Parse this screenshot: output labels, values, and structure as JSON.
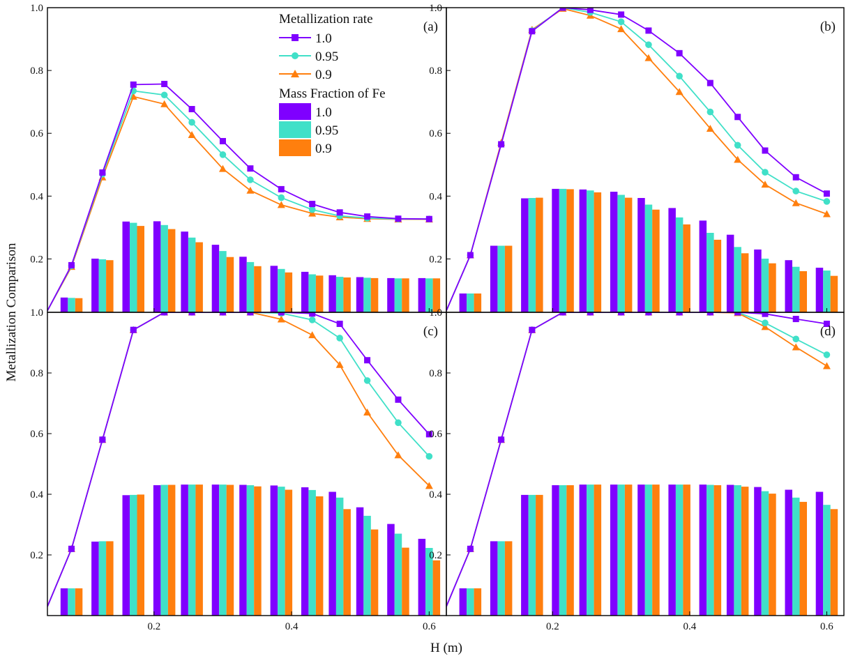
{
  "figure": {
    "xlabel": "H (m)",
    "ylabel": "Metallization Comparison"
  },
  "colors": {
    "rate_1_0": "#7f00ff",
    "rate_0_95": "#40e0c8",
    "rate_0_9": "#ff7f0e"
  },
  "legend": {
    "line_title": "Metallization rate",
    "line_items": [
      "1.0",
      "0.95",
      "0.9"
    ],
    "bar_title": "Mass Fraction of Fe",
    "bar_items": [
      "1.0",
      "0.95",
      "0.9"
    ]
  },
  "chart_data": [
    {
      "panel": "(a)",
      "type": "bar+line",
      "x": [
        0.08,
        0.125,
        0.17,
        0.215,
        0.255,
        0.3,
        0.34,
        0.385,
        0.43,
        0.47,
        0.51,
        0.555,
        0.6
      ],
      "xlim": [
        0.045,
        0.625
      ],
      "ylim": [
        0.03,
        1.0
      ],
      "line_start": [
        0.045,
        0.035
      ],
      "x_ticks": [
        0.2,
        0.4,
        0.6
      ],
      "y_ticks": [
        0.2,
        0.4,
        0.6,
        0.8,
        1.0
      ],
      "series": [
        {
          "name": "1.0",
          "line": [
            0.18,
            0.475,
            0.755,
            0.757,
            0.677,
            0.575,
            0.488,
            0.422,
            0.375,
            0.348,
            0.335,
            0.328,
            0.327
          ],
          "bars": [
            0.077,
            0.201,
            0.319,
            0.32,
            0.287,
            0.245,
            0.207,
            0.178,
            0.159,
            0.148,
            0.142,
            0.139,
            0.139
          ]
        },
        {
          "name": "0.95",
          "line": [
            0.178,
            0.47,
            0.735,
            0.722,
            0.635,
            0.532,
            0.452,
            0.395,
            0.357,
            0.337,
            0.33,
            0.327,
            0.327
          ],
          "bars": [
            0.076,
            0.199,
            0.315,
            0.308,
            0.268,
            0.225,
            0.19,
            0.168,
            0.151,
            0.143,
            0.14,
            0.138,
            0.138
          ]
        },
        {
          "name": "0.9",
          "line": [
            0.175,
            0.46,
            0.717,
            0.693,
            0.595,
            0.487,
            0.418,
            0.372,
            0.345,
            0.333,
            0.328,
            0.326,
            0.326
          ],
          "bars": [
            0.075,
            0.196,
            0.305,
            0.295,
            0.253,
            0.206,
            0.177,
            0.157,
            0.147,
            0.141,
            0.139,
            0.138,
            0.138
          ]
        }
      ]
    },
    {
      "panel": "(b)",
      "type": "bar+line",
      "x": [
        0.08,
        0.125,
        0.17,
        0.215,
        0.255,
        0.3,
        0.34,
        0.385,
        0.43,
        0.47,
        0.51,
        0.555,
        0.6
      ],
      "xlim": [
        0.045,
        0.625
      ],
      "ylim": [
        0.03,
        1.0
      ],
      "line_start": [
        0.045,
        0.035
      ],
      "x_ticks": [
        0.2,
        0.4,
        0.6
      ],
      "y_ticks": [
        0.2,
        0.4,
        0.6,
        0.8,
        1.0
      ],
      "series": [
        {
          "name": "1.0",
          "line": [
            0.212,
            0.565,
            0.925,
            1.0,
            0.993,
            0.978,
            0.927,
            0.855,
            0.76,
            0.652,
            0.545,
            0.46,
            0.408
          ],
          "bars": [
            0.09,
            0.242,
            0.393,
            0.423,
            0.421,
            0.414,
            0.394,
            0.362,
            0.322,
            0.277,
            0.23,
            0.196,
            0.172
          ]
        },
        {
          "name": "0.95",
          "line": [
            0.212,
            0.565,
            0.927,
            1.0,
            0.985,
            0.955,
            0.882,
            0.782,
            0.668,
            0.562,
            0.476,
            0.416,
            0.383
          ],
          "bars": [
            0.09,
            0.242,
            0.394,
            0.423,
            0.418,
            0.404,
            0.373,
            0.332,
            0.283,
            0.238,
            0.201,
            0.175,
            0.163
          ]
        },
        {
          "name": "0.9",
          "line": [
            0.212,
            0.57,
            0.93,
            0.997,
            0.975,
            0.932,
            0.84,
            0.732,
            0.615,
            0.516,
            0.437,
            0.378,
            0.343
          ],
          "bars": [
            0.09,
            0.242,
            0.395,
            0.422,
            0.412,
            0.395,
            0.357,
            0.31,
            0.261,
            0.218,
            0.186,
            0.161,
            0.146
          ]
        }
      ]
    },
    {
      "panel": "(c)",
      "type": "bar+line",
      "x": [
        0.08,
        0.125,
        0.17,
        0.215,
        0.255,
        0.3,
        0.34,
        0.385,
        0.43,
        0.47,
        0.51,
        0.555,
        0.6
      ],
      "xlim": [
        0.045,
        0.625
      ],
      "ylim": [
        0.0,
        1.0
      ],
      "line_start": [
        0.045,
        0.03
      ],
      "x_ticks": [
        0.2,
        0.4,
        0.6
      ],
      "y_ticks": [
        0.2,
        0.4,
        0.6,
        0.8,
        1.0
      ],
      "series": [
        {
          "name": "1.0",
          "line": [
            0.22,
            0.58,
            0.942,
            1.0,
            1.0,
            1.0,
            1.0,
            1.0,
            0.996,
            0.962,
            0.842,
            0.712,
            0.598
          ],
          "bars": [
            0.09,
            0.244,
            0.397,
            0.43,
            0.432,
            0.432,
            0.431,
            0.429,
            0.423,
            0.408,
            0.357,
            0.302,
            0.253
          ]
        },
        {
          "name": "0.95",
          "line": [
            0.22,
            0.58,
            0.942,
            1.0,
            1.0,
            1.0,
            1.0,
            0.997,
            0.975,
            0.915,
            0.775,
            0.636,
            0.525
          ],
          "bars": [
            0.09,
            0.245,
            0.398,
            0.431,
            0.432,
            0.432,
            0.43,
            0.425,
            0.414,
            0.389,
            0.329,
            0.27,
            0.223
          ]
        },
        {
          "name": "0.9",
          "line": [
            0.22,
            0.58,
            0.942,
            1.0,
            1.0,
            1.0,
            1.0,
            0.977,
            0.925,
            0.827,
            0.67,
            0.529,
            0.428
          ],
          "bars": [
            0.09,
            0.245,
            0.399,
            0.431,
            0.432,
            0.431,
            0.426,
            0.415,
            0.393,
            0.351,
            0.284,
            0.224,
            0.182
          ]
        }
      ]
    },
    {
      "panel": "(d)",
      "type": "bar+line",
      "x": [
        0.08,
        0.125,
        0.17,
        0.215,
        0.255,
        0.3,
        0.34,
        0.385,
        0.43,
        0.47,
        0.51,
        0.555,
        0.6
      ],
      "xlim": [
        0.045,
        0.625
      ],
      "ylim": [
        0.0,
        1.0
      ],
      "line_start": [
        0.045,
        0.03
      ],
      "x_ticks": [
        0.2,
        0.4,
        0.6
      ],
      "y_ticks": [
        0.2,
        0.4,
        0.6,
        0.8,
        1.0
      ],
      "series": [
        {
          "name": "1.0",
          "line": [
            0.22,
            0.58,
            0.942,
            1.0,
            1.0,
            1.0,
            1.0,
            1.0,
            1.0,
            1.0,
            0.995,
            0.978,
            0.962
          ],
          "bars": [
            0.09,
            0.245,
            0.398,
            0.43,
            0.432,
            0.432,
            0.432,
            0.432,
            0.432,
            0.431,
            0.424,
            0.415,
            0.408
          ]
        },
        {
          "name": "0.95",
          "line": [
            0.22,
            0.58,
            0.942,
            1.0,
            1.0,
            1.0,
            1.0,
            1.0,
            1.0,
            1.0,
            0.965,
            0.912,
            0.86
          ],
          "bars": [
            0.09,
            0.245,
            0.398,
            0.43,
            0.432,
            0.432,
            0.432,
            0.432,
            0.431,
            0.43,
            0.41,
            0.389,
            0.365
          ]
        },
        {
          "name": "0.9",
          "line": [
            0.22,
            0.58,
            0.942,
            1.0,
            1.0,
            1.0,
            1.0,
            1.0,
            1.0,
            0.998,
            0.952,
            0.885,
            0.823
          ],
          "bars": [
            0.09,
            0.245,
            0.398,
            0.43,
            0.432,
            0.432,
            0.432,
            0.432,
            0.43,
            0.425,
            0.402,
            0.375,
            0.351
          ]
        }
      ]
    }
  ]
}
